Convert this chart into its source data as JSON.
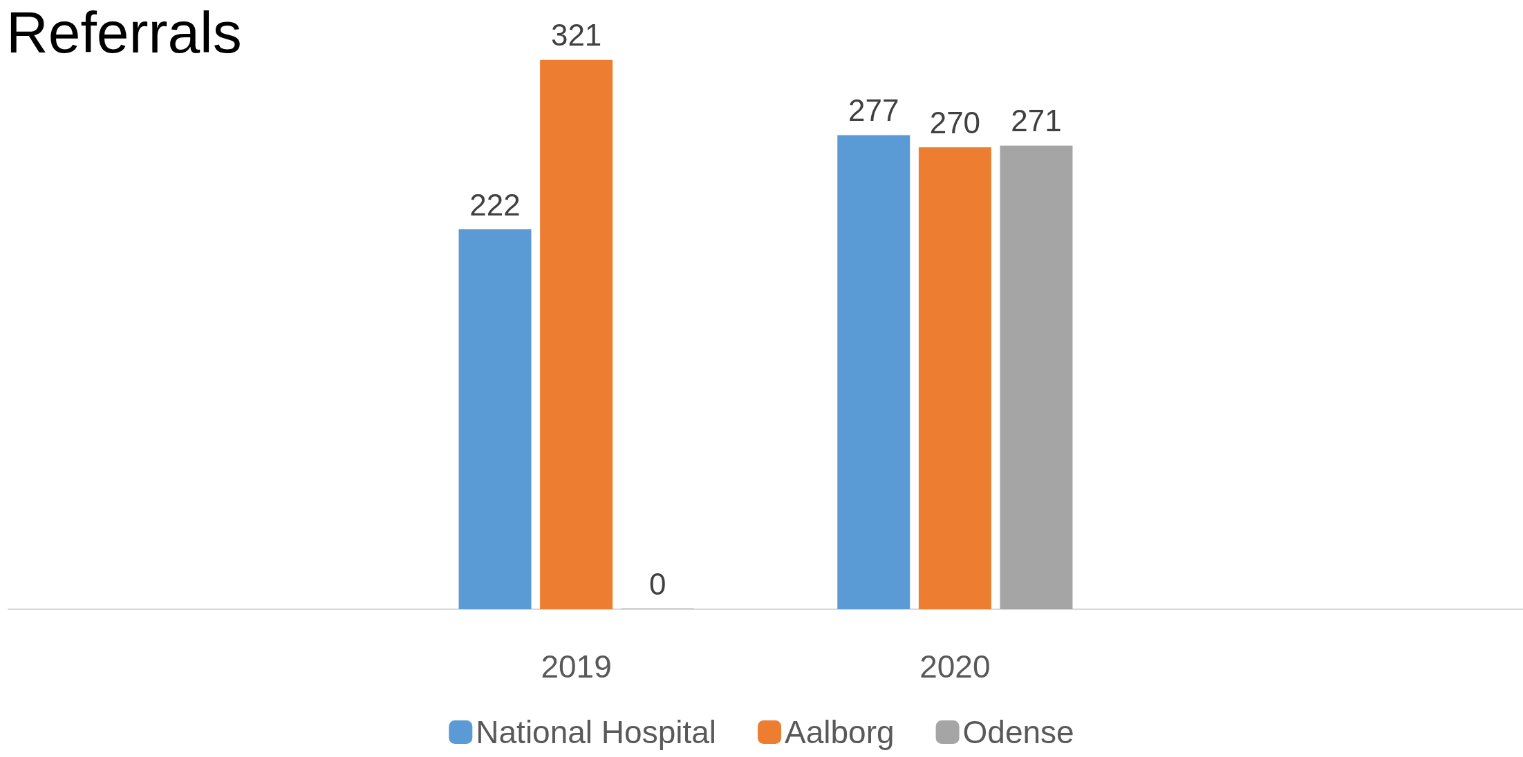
{
  "chart_data": {
    "type": "bar",
    "title": "Referrals",
    "categories": [
      null,
      "2019",
      "2020",
      null
    ],
    "series": [
      {
        "name": "National Hospital",
        "color": "#5b9bd5",
        "values": [
          null,
          222,
          277,
          null
        ]
      },
      {
        "name": "Aalborg",
        "color": "#ed7d31",
        "values": [
          null,
          321,
          270,
          null
        ]
      },
      {
        "name": "Odense",
        "color": "#a5a5a5",
        "values": [
          null,
          0,
          271,
          null
        ]
      }
    ],
    "data_labels": true,
    "legend": "bottom",
    "grid": false
  }
}
